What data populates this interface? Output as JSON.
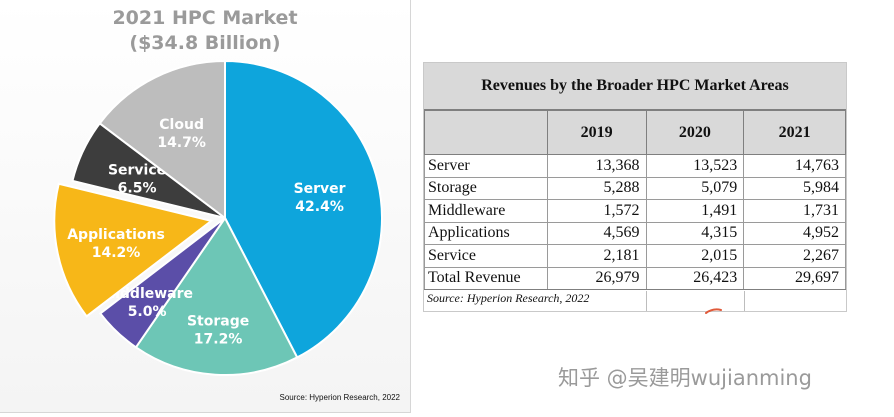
{
  "chart_data": {
    "type": "pie",
    "title": "2021 HPC Market",
    "subtitle": "($34.8 Billion)",
    "source": "Source: Hyperion Research, 2022",
    "slices": [
      {
        "name": "Server",
        "value": 42.4,
        "label": "42.4%",
        "color": "#0ea5dc",
        "label_color": "#ffffff",
        "exploded": false
      },
      {
        "name": "Storage",
        "value": 17.2,
        "label": "17.2%",
        "color": "#6dc6b6",
        "label_color": "#ffffff",
        "exploded": false
      },
      {
        "name": "Middleware",
        "value": 5.0,
        "label": "5.0%",
        "color": "#5b4ea8",
        "label_color": "#ffffff",
        "exploded": false
      },
      {
        "name": "Applications",
        "value": 14.2,
        "label": "14.2%",
        "color": "#f7b718",
        "label_color": "#ffffff",
        "exploded": true
      },
      {
        "name": "Service",
        "value": 6.5,
        "label": "6.5%",
        "color": "#3d3d3d",
        "label_color": "#ffffff",
        "exploded": false
      },
      {
        "name": "Cloud",
        "value": 14.7,
        "label": "14.7%",
        "color": "#bdbdbd",
        "label_color": "#ffffff",
        "exploded": false
      }
    ]
  },
  "table": {
    "caption": "Revenues by the Broader HPC Market Areas",
    "columns": [
      "",
      "2019",
      "2020",
      "2021"
    ],
    "rows": [
      {
        "label": "Server",
        "values": [
          "13,368",
          "13,523",
          "14,763"
        ]
      },
      {
        "label": "Storage",
        "values": [
          "5,288",
          "5,079",
          "5,984"
        ]
      },
      {
        "label": "Middleware",
        "values": [
          "1,572",
          "1,491",
          "1,731"
        ]
      },
      {
        "label": "Applications",
        "values": [
          "4,569",
          "4,315",
          "4,952"
        ]
      },
      {
        "label": "Service",
        "values": [
          "2,181",
          "2,015",
          "2,267"
        ]
      },
      {
        "label": "Total Revenue",
        "values": [
          "26,979",
          "26,423",
          "29,697"
        ]
      }
    ],
    "source": "Source: Hyperion Research, 2022"
  },
  "watermark": "知乎 @吴建明wujianming"
}
